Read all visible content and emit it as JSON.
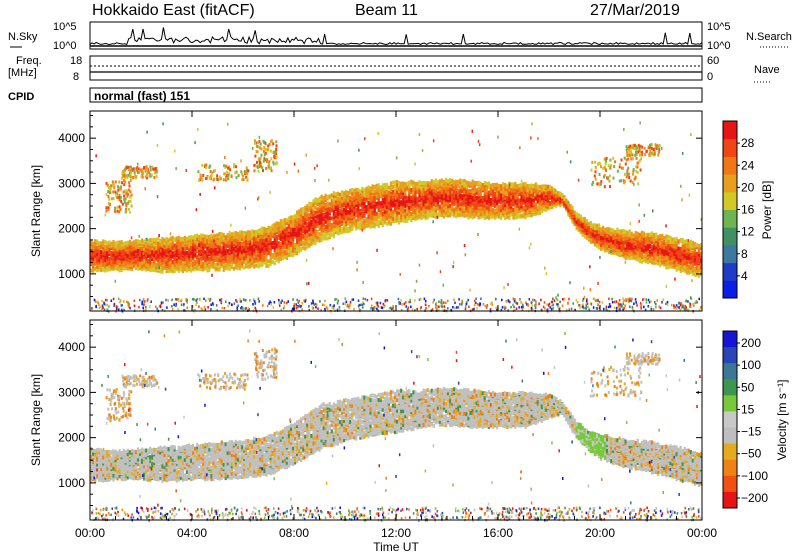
{
  "header": {
    "station": "Hokkaido East (fitACF)",
    "beam": "Beam 11",
    "date": "27/Mar/2019"
  },
  "strip": {
    "nsky_label": "N.Sky",
    "nsearch_label": "N.Search",
    "nsky_top": "10^5",
    "nsky_bottom": "10^0",
    "nsearch_top": "10^5",
    "nsearch_bottom": "10^0",
    "freq_label": "Freq.",
    "freq_unit": "[MHz]",
    "freq_top": "18",
    "freq_bottom": "8",
    "nave_label": "Nave",
    "nave_top": "60",
    "nave_bottom": "0",
    "cpid_label": "CPID",
    "cpid_value": "normal (fast) 151"
  },
  "colors": {
    "power": [
      "#0a1ee6",
      "#1e3cc8",
      "#3c78a0",
      "#409064",
      "#6eb450",
      "#d2c828",
      "#e6a01e",
      "#f07814",
      "#f04614",
      "#e61414"
    ],
    "velocity": [
      "#1414d2",
      "#2846b4",
      "#3c7896",
      "#3c9650",
      "#78c83c",
      "#c8c8c8",
      "#bebebe",
      "#e6aa1e",
      "#f08214",
      "#f05014",
      "#e61414"
    ],
    "gray": "#c0c0c0"
  },
  "chart_data": [
    {
      "type": "heatmap",
      "title": "",
      "quantity": "Power",
      "ylabel": "Slant Range [km]",
      "xlabel": "",
      "ylim": [
        180,
        4600
      ],
      "xlim": [
        0,
        24
      ],
      "yticks": [
        1000,
        2000,
        3000,
        4000
      ],
      "xticks": [
        0,
        4,
        8,
        12,
        16,
        20,
        24
      ],
      "colorbar": {
        "label": "Power [dB]",
        "range": [
          0,
          32
        ],
        "ticks": [
          4,
          8,
          12,
          16,
          20,
          24,
          28
        ]
      },
      "main_echo_band": [
        {
          "t": 0,
          "lo": 1100,
          "hi": 1800
        },
        {
          "t": 1,
          "lo": 1150,
          "hi": 1750
        },
        {
          "t": 2,
          "lo": 1150,
          "hi": 1800
        },
        {
          "t": 3,
          "lo": 1100,
          "hi": 1850
        },
        {
          "t": 4,
          "lo": 1150,
          "hi": 1900
        },
        {
          "t": 5,
          "lo": 1150,
          "hi": 1950
        },
        {
          "t": 6,
          "lo": 1200,
          "hi": 2000
        },
        {
          "t": 7,
          "lo": 1250,
          "hi": 2100
        },
        {
          "t": 8,
          "lo": 1500,
          "hi": 2400
        },
        {
          "t": 9,
          "lo": 1800,
          "hi": 2800
        },
        {
          "t": 10,
          "lo": 2000,
          "hi": 2900
        },
        {
          "t": 11,
          "lo": 2100,
          "hi": 3000
        },
        {
          "t": 12,
          "lo": 2200,
          "hi": 3100
        },
        {
          "t": 13,
          "lo": 2300,
          "hi": 3100
        },
        {
          "t": 14,
          "lo": 2350,
          "hi": 3150
        },
        {
          "t": 15,
          "lo": 2300,
          "hi": 3100
        },
        {
          "t": 16,
          "lo": 2300,
          "hi": 3050
        },
        {
          "t": 17,
          "lo": 2300,
          "hi": 3050
        },
        {
          "t": 18,
          "lo": 2500,
          "hi": 3000
        },
        {
          "t": 18.5,
          "lo": 2600,
          "hi": 2800
        },
        {
          "t": 19,
          "lo": 2100,
          "hi": 2400
        },
        {
          "t": 19.5,
          "lo": 1800,
          "hi": 2200
        },
        {
          "t": 20,
          "lo": 1600,
          "hi": 2100
        },
        {
          "t": 21,
          "lo": 1400,
          "hi": 2000
        },
        {
          "t": 22,
          "lo": 1300,
          "hi": 1950
        },
        {
          "t": 23,
          "lo": 1150,
          "hi": 1850
        },
        {
          "t": 24,
          "lo": 1000,
          "hi": 1700
        }
      ]
    },
    {
      "type": "heatmap",
      "title": "",
      "quantity": "Velocity",
      "ylabel": "Slant Range [km]",
      "xlabel": "Time UT",
      "ylim": [
        180,
        4600
      ],
      "xlim": [
        0,
        24
      ],
      "yticks": [
        1000,
        2000,
        3000,
        4000
      ],
      "xticks": [
        0,
        4,
        8,
        12,
        16,
        20,
        24
      ],
      "colorbar": {
        "label": "Velocity [m s⁻¹]",
        "ticks": [
          200,
          100,
          50,
          15,
          -15,
          -50,
          -100,
          -200
        ]
      }
    }
  ],
  "axis": {
    "xtick_labels": [
      "00:00",
      "04:00",
      "08:00",
      "12:00",
      "16:00",
      "20:00",
      "00:00"
    ],
    "x_title": "Time UT",
    "y_title": "Slant Range [km]",
    "ytick_labels": [
      "1000",
      "2000",
      "3000",
      "4000"
    ],
    "power_title": "Power [dB]",
    "velocity_title": "Velocity [m s⁻¹]",
    "power_ticks": [
      "4",
      "8",
      "12",
      "16",
      "20",
      "24",
      "28"
    ],
    "velocity_ticks": [
      "200",
      "100",
      "50",
      "15",
      "−15",
      "−50",
      "−100",
      "−200"
    ]
  }
}
